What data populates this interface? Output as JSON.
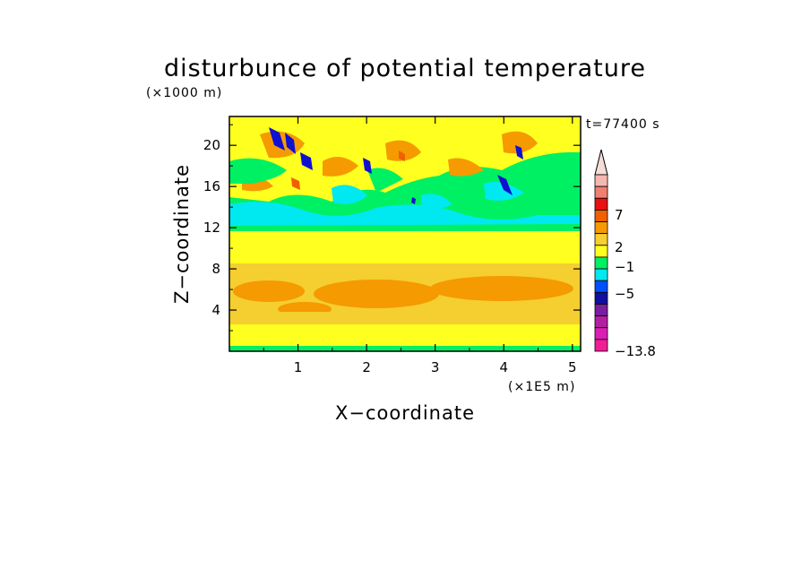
{
  "chart_data": {
    "type": "heatmap",
    "title": "disturbunce of potential temperature",
    "time_label": "t=77400 s",
    "xlabel": "X−coordinate",
    "ylabel": "Z−coordinate",
    "x_unit_label": "(×1E5 m)",
    "y_unit_label": "(×1000 m)",
    "x_range": [
      0,
      5.12
    ],
    "y_range": [
      0,
      22.8
    ],
    "x_ticks": [
      1,
      2,
      3,
      4,
      5
    ],
    "x_tick_labels": [
      "1",
      "2",
      "3",
      "4",
      "5"
    ],
    "y_ticks": [
      4,
      8,
      12,
      16,
      20
    ],
    "y_tick_labels": [
      "4",
      "8",
      "12",
      "16",
      "20"
    ],
    "colorbar": {
      "labels": [
        {
          "level": 7,
          "text": "7"
        },
        {
          "level": 2,
          "text": "2"
        },
        {
          "level": -1,
          "text": "−1"
        },
        {
          "level": -5,
          "text": "−5"
        },
        {
          "level": -13.8,
          "text": "−13.8"
        }
      ],
      "colors_top_to_bottom": [
        "#f5b8b0",
        "#f08070",
        "#e81010",
        "#f06000",
        "#f59a00",
        "#f5ce30",
        "#ffff20",
        "#00f064",
        "#00e8f0",
        "#0050ff",
        "#1010a0",
        "#781ea0",
        "#b41ea0",
        "#dc1eb4",
        "#f01e96"
      ]
    },
    "colors": {
      "deep_blue": "#1010d0",
      "cyan": "#00e8f0",
      "green": "#00f064",
      "yellow": "#ffff20",
      "light_orange": "#f5ce30",
      "orange": "#f59a00",
      "dark_orange": "#f06000"
    }
  }
}
